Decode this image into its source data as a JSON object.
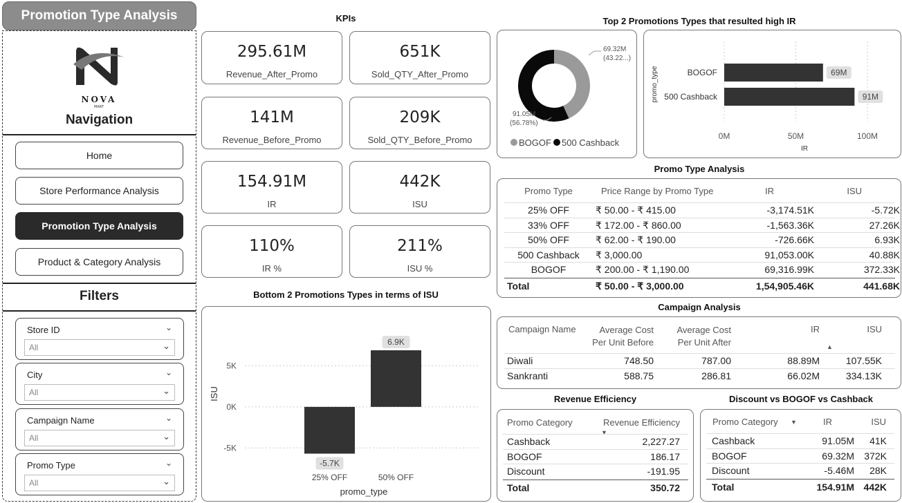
{
  "page_title": "Promotion Type Analysis",
  "logo": {
    "brand": "NOVA",
    "sub": "MART",
    "icon": "nova-n-logo-icon"
  },
  "navigation": {
    "title": "Navigation",
    "items": [
      {
        "label": "Home",
        "active": false
      },
      {
        "label": "Store Performance Analysis",
        "active": false
      },
      {
        "label": "Promotion Type Analysis",
        "active": true
      },
      {
        "label": "Product & Category Analysis",
        "active": false
      }
    ]
  },
  "filters": {
    "title": "Filters",
    "items": [
      {
        "label": "Store ID",
        "value": "All"
      },
      {
        "label": "City",
        "value": "All"
      },
      {
        "label": "Campaign Name",
        "value": "All"
      },
      {
        "label": "Promo Type",
        "value": "All"
      }
    ]
  },
  "kpis": {
    "title": "KPIs",
    "cards": [
      {
        "value": "295.61M",
        "label": "Revenue_After_Promo"
      },
      {
        "value": "651K",
        "label": "Sold_QTY_After_Promo"
      },
      {
        "value": "141M",
        "label": "Revenue_Before_Promo"
      },
      {
        "value": "209K",
        "label": "Sold_QTY_Before_Promo"
      },
      {
        "value": "154.91M",
        "label": "IR"
      },
      {
        "value": "442K",
        "label": "ISU"
      },
      {
        "value": "110%",
        "label": "IR %"
      },
      {
        "value": "211%",
        "label": "ISU %"
      }
    ]
  },
  "top_promos": {
    "title": "Top 2 Promotions Types that resulted high IR"
  },
  "bottom_isu": {
    "title": "Bottom 2 Promotions Types in terms of ISU"
  },
  "promo_table": {
    "title": "Promo Type Analysis",
    "columns": [
      "Promo Type",
      "Price Range by Promo Type",
      "IR",
      "ISU"
    ],
    "rows": [
      [
        "25% OFF",
        "₹ 50.00 - ₹ 415.00",
        "-3,174.51K",
        "-5.72K"
      ],
      [
        "33% OFF",
        "₹ 172.00 - ₹ 860.00",
        "-1,563.36K",
        "27.26K"
      ],
      [
        "50% OFF",
        "₹ 62.00 - ₹ 190.00",
        "-726.66K",
        "6.93K"
      ],
      [
        "500 Cashback",
        "₹ 3,000.00",
        "91,053.00K",
        "40.88K"
      ],
      [
        "BOGOF",
        "₹ 200.00 - ₹ 1,190.00",
        "69,316.99K",
        "372.33K"
      ]
    ],
    "total": [
      "Total",
      "₹ 50.00 - ₹ 3,000.00",
      "1,54,905.46K",
      "441.68K"
    ]
  },
  "campaign_table": {
    "title": "Campaign Analysis",
    "columns": [
      "Campaign Name",
      "Average Cost\nPer Unit Before",
      "Average Cost\nPer Unit After",
      "IR",
      "ISU"
    ],
    "rows": [
      [
        "Diwali",
        "748.50",
        "787.00",
        "88.89M",
        "107.55K"
      ],
      [
        "Sankranti",
        "588.75",
        "286.81",
        "66.02M",
        "334.13K"
      ]
    ]
  },
  "revenue_eff": {
    "title": "Revenue Efficiency",
    "columns": [
      "Promo Category",
      "Revenue Efficiency"
    ],
    "rows": [
      [
        "Cashback",
        "2,227.27"
      ],
      [
        "BOGOF",
        "186.17"
      ],
      [
        "Discount",
        "-191.95"
      ]
    ],
    "total": [
      "Total",
      "350.72"
    ]
  },
  "discount_table": {
    "title": "Discount vs BOGOF vs Cashback",
    "columns": [
      "Promo Category",
      "IR",
      "ISU"
    ],
    "rows": [
      [
        "Cashback",
        "91.05M",
        "41K"
      ],
      [
        "BOGOF",
        "69.32M",
        "372K"
      ],
      [
        "Discount",
        "-5.46M",
        "28K"
      ]
    ],
    "total": [
      "Total",
      "154.91M",
      "442K"
    ]
  },
  "chart_data": [
    {
      "type": "pie",
      "variant": "donut",
      "categories": [
        "BOGOF",
        "500 Cashback"
      ],
      "values": [
        69.32,
        91.05
      ],
      "data_labels": [
        "69.32M (43.22...)",
        "91.05M (56.78%)"
      ],
      "colors": [
        "#9a9a9a",
        "#0a0a0a"
      ],
      "legend": "bottom",
      "title": "",
      "xlabel": "",
      "ylabel": ""
    },
    {
      "type": "bar",
      "orientation": "horizontal",
      "categories": [
        "BOGOF",
        "500 Cashback"
      ],
      "values": [
        69,
        91
      ],
      "data_labels": [
        "69M",
        "91M"
      ],
      "xlabel": "IR",
      "ylabel": "promo_type",
      "xlim": [
        0,
        100
      ],
      "x_ticks": [
        "0M",
        "50M",
        "100M"
      ],
      "grid": true,
      "colors": [
        "#333333"
      ]
    },
    {
      "type": "bar",
      "categories": [
        "25% OFF",
        "50% OFF"
      ],
      "values": [
        -5.7,
        6.9
      ],
      "data_labels": [
        "-5.7K",
        "6.9K"
      ],
      "xlabel": "promo_type",
      "ylabel": "ISU",
      "ylim": [
        -7,
        9
      ],
      "y_ticks": [
        "5K",
        "0K",
        "-5K"
      ],
      "grid": true,
      "colors": [
        "#333333"
      ]
    }
  ]
}
